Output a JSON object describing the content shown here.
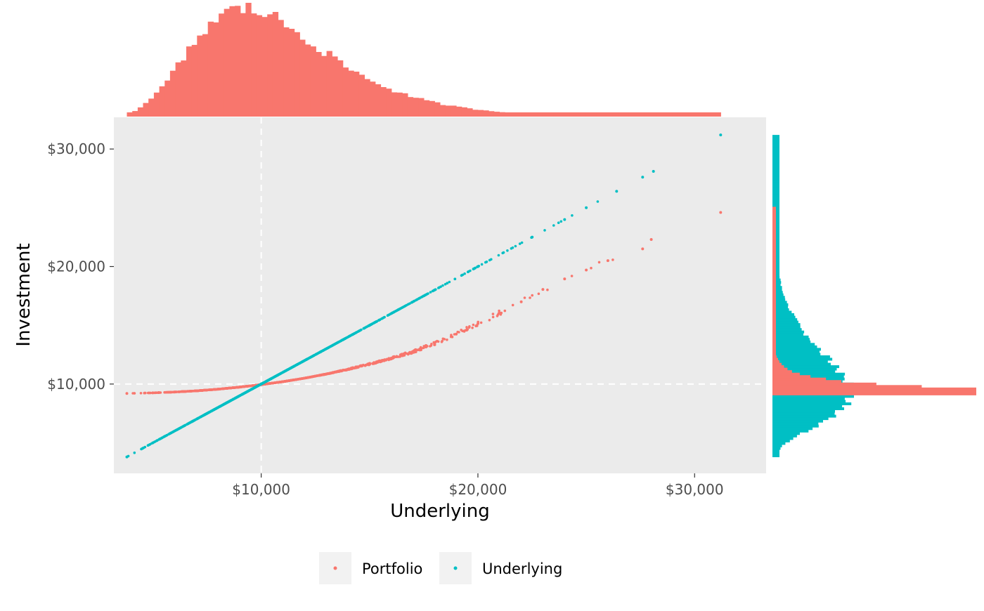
{
  "chart_data": {
    "type": "scatter",
    "title": "",
    "xlabel": "Underlying",
    "ylabel": "Investment",
    "xlim": [
      3200,
      33300
    ],
    "ylim": [
      2400,
      32700
    ],
    "x_ticks": [
      {
        "value": 10000,
        "label": "$10,000"
      },
      {
        "value": 20000,
        "label": "$20,000"
      },
      {
        "value": 30000,
        "label": "$30,000"
      }
    ],
    "y_ticks": [
      {
        "value": 10000,
        "label": "$10,000"
      },
      {
        "value": 20000,
        "label": "$20,000"
      },
      {
        "value": 30000,
        "label": "$30,000"
      }
    ],
    "reference_lines": {
      "x": 10000,
      "y": 10000,
      "style": "dashed",
      "color": "#ffffff"
    },
    "grid": false,
    "panel_background": "#ebebeb",
    "legend_position": "bottom",
    "series": [
      {
        "name": "Portfolio",
        "color": "#F8766D",
        "description_points_x": [
          3800,
          5000,
          6000,
          7000,
          8000,
          9000,
          10000,
          11000,
          12000,
          13000,
          14000,
          15000,
          16000,
          17000,
          18000,
          19000,
          20000,
          21000,
          22000,
          23000,
          24000,
          25000,
          26000,
          27600,
          28000,
          31200
        ],
        "description_points_y": [
          9200,
          9250,
          9320,
          9420,
          9560,
          9740,
          9950,
          10200,
          10500,
          10850,
          11250,
          11700,
          12200,
          12750,
          13450,
          14250,
          15150,
          16050,
          17000,
          18050,
          18950,
          19700,
          20500,
          21500,
          22300,
          24600
        ]
      },
      {
        "name": "Underlying",
        "color": "#00BFC4",
        "description_points_x": [
          3800,
          5000,
          10000,
          15000,
          20000,
          22500,
          24000,
          25000,
          26400,
          27600,
          28100,
          31200
        ],
        "description_points_y": [
          3800,
          5000,
          10000,
          15000,
          20000,
          22500,
          24000,
          25000,
          26400,
          27600,
          28100,
          31200
        ]
      }
    ],
    "marginal_histograms": {
      "top": {
        "variable": "Underlying",
        "peak_at": 9500,
        "range": [
          3800,
          31200
        ],
        "color": "#F8766D"
      },
      "right": {
        "variable": "Investment",
        "series": [
          {
            "name": "Portfolio",
            "peak_at": 9500,
            "color": "#F8766D"
          },
          {
            "name": "Underlying",
            "peak_at": 9500,
            "color": "#00BFC4"
          }
        ]
      }
    }
  }
}
